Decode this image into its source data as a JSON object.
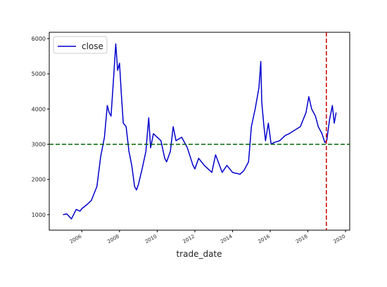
{
  "chart_data": {
    "type": "line",
    "x_label": "trade_date",
    "x": [
      2005.0,
      2005.2,
      2005.45,
      2005.7,
      2005.9,
      2006.0,
      2006.3,
      2006.5,
      2006.8,
      2007.0,
      2007.2,
      2007.35,
      2007.45,
      2007.55,
      2007.7,
      2007.8,
      2007.9,
      2008.0,
      2008.1,
      2008.2,
      2008.35,
      2008.5,
      2008.65,
      2008.8,
      2008.9,
      2009.0,
      2009.2,
      2009.4,
      2009.55,
      2009.65,
      2009.8,
      2010.0,
      2010.2,
      2010.4,
      2010.5,
      2010.7,
      2010.85,
      2011.0,
      2011.3,
      2011.6,
      2011.9,
      2012.0,
      2012.2,
      2012.5,
      2012.9,
      2013.1,
      2013.45,
      2013.7,
      2014.0,
      2014.4,
      2014.6,
      2014.85,
      2015.0,
      2015.2,
      2015.4,
      2015.5,
      2015.55,
      2015.65,
      2015.75,
      2015.9,
      2016.05,
      2016.2,
      2016.5,
      2016.8,
      2017.0,
      2017.3,
      2017.6,
      2017.9,
      2018.05,
      2018.2,
      2018.4,
      2018.55,
      2018.75,
      2018.9,
      2019.0,
      2019.15,
      2019.3,
      2019.4,
      2019.5
    ],
    "series": [
      {
        "name": "close",
        "color": "#0000cc",
        "values": [
          1000,
          1020,
          880,
          1150,
          1100,
          1170,
          1300,
          1400,
          1800,
          2650,
          3200,
          4100,
          3900,
          3800,
          5000,
          5850,
          5100,
          5300,
          4400,
          3600,
          3500,
          2800,
          2400,
          1800,
          1700,
          1850,
          2300,
          2800,
          3750,
          2900,
          3300,
          3200,
          3100,
          2600,
          2500,
          2800,
          3500,
          3100,
          3200,
          2900,
          2400,
          2300,
          2600,
          2400,
          2200,
          2700,
          2200,
          2400,
          2200,
          2150,
          2250,
          2500,
          3500,
          4000,
          4600,
          5350,
          4200,
          3600,
          3100,
          3600,
          3000,
          3050,
          3100,
          3250,
          3300,
          3400,
          3500,
          3900,
          4350,
          4000,
          3800,
          3500,
          3300,
          3050,
          3100,
          3700,
          4100,
          3600,
          3900
        ]
      }
    ],
    "xlim": [
      2004.27,
      2020.22
    ],
    "xticks": [
      2006,
      2008,
      2010,
      2012,
      2014,
      2016,
      2018,
      2020
    ],
    "ylim": [
      560,
      6180
    ],
    "yticks": [
      1000,
      2000,
      3000,
      4000,
      5000,
      6000
    ],
    "hline": {
      "value": 3000,
      "color": "#006400"
    },
    "vline": {
      "value": 2018.98,
      "color": "#cc0000"
    },
    "legend": "upper left"
  }
}
